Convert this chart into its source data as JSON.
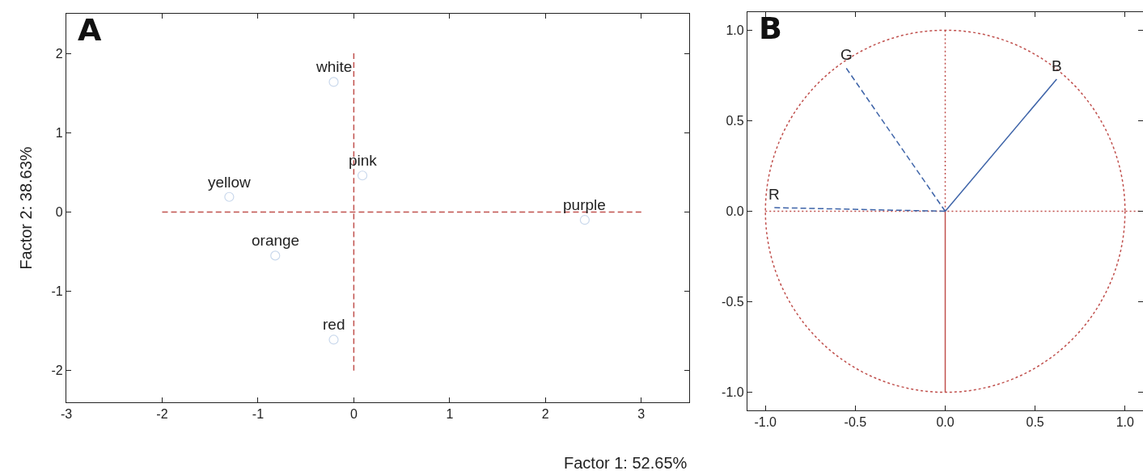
{
  "chart_data": [
    {
      "type": "scatter",
      "title": "A",
      "xlabel": "Factor 1: 52.65%",
      "ylabel": "Factor 2: 38.63%",
      "xlim": [
        -3,
        3.5
      ],
      "ylim": [
        -2.4,
        2.5
      ],
      "xticks": [
        -3,
        -2,
        -1,
        0,
        1,
        2,
        3
      ],
      "yticks": [
        -2,
        -1,
        0,
        1,
        2
      ],
      "grid": false,
      "legend": false,
      "series": [
        {
          "type": "line",
          "color": "#c0504d",
          "line_style": "dashed",
          "marker": "none",
          "x": [
            -2,
            3
          ],
          "values": [
            0,
            0
          ]
        },
        {
          "type": "line",
          "color": "#c0504d",
          "line_style": "dashed",
          "marker": "none",
          "x": [
            0,
            0
          ],
          "values": [
            -2,
            2
          ]
        },
        {
          "color": "#c9d8ec",
          "marker": "circle",
          "x": [
            -0.21,
            0.09,
            -1.3,
            -0.82,
            -0.21,
            2.41
          ],
          "values": [
            1.64,
            0.46,
            0.19,
            -0.55,
            -1.61,
            -0.1
          ]
        }
      ],
      "annotations": [
        {
          "text": "white",
          "x": -0.21,
          "y": 1.64
        },
        {
          "text": "pink",
          "x": 0.09,
          "y": 0.46
        },
        {
          "text": "yellow",
          "x": -1.3,
          "y": 0.19
        },
        {
          "text": "orange",
          "x": -0.82,
          "y": -0.55
        },
        {
          "text": "red",
          "x": -0.21,
          "y": -1.61
        },
        {
          "text": "purple",
          "x": 2.41,
          "y": -0.1
        }
      ]
    },
    {
      "type": "line",
      "title": "B",
      "xlim": [
        -1.1,
        1.1
      ],
      "ylim": [
        -1.1,
        1.1
      ],
      "xticks": [
        {
          "value": -1,
          "label": "-1.0"
        },
        {
          "value": -0.5,
          "label": "-0.5"
        },
        {
          "value": 0,
          "label": "0.0"
        },
        {
          "value": 0.5,
          "label": "0.5"
        },
        {
          "value": 1,
          "label": "1.0"
        }
      ],
      "yticks": [
        {
          "value": -1,
          "label": "-1.0"
        },
        {
          "value": -0.5,
          "label": "-0.5"
        },
        {
          "value": 0,
          "label": "0.0"
        },
        {
          "value": 0.5,
          "label": "0.5"
        },
        {
          "value": 1,
          "label": "1.0"
        }
      ],
      "grid": false,
      "legend": false,
      "series": [
        {
          "color": "#c0504d",
          "line_style": "dotted",
          "marker": "none",
          "x": [
            -1,
            1.08
          ],
          "values": [
            0,
            0
          ]
        },
        {
          "color": "#c0504d",
          "line_style": "dotted",
          "marker": "none",
          "x": [
            0,
            0
          ],
          "values": [
            0,
            1
          ]
        },
        {
          "color": "#c0504d",
          "line_style": "solid",
          "marker": "none",
          "x": [
            0,
            0
          ],
          "values": [
            0,
            -1
          ]
        },
        {
          "name": "G",
          "color": "#3d63a8",
          "line_style": "dashed",
          "marker": "none",
          "x": [
            0,
            -0.55
          ],
          "values": [
            0,
            0.79
          ]
        },
        {
          "name": "B",
          "color": "#3d63a8",
          "line_style": "solid",
          "marker": "none",
          "x": [
            0,
            0.62
          ],
          "values": [
            0,
            0.73
          ]
        },
        {
          "name": "R",
          "color": "#3d63a8",
          "line_style": "dashed",
          "marker": "none",
          "x": [
            0,
            -0.95
          ],
          "values": [
            0,
            0.02
          ]
        }
      ]
    }
  ]
}
